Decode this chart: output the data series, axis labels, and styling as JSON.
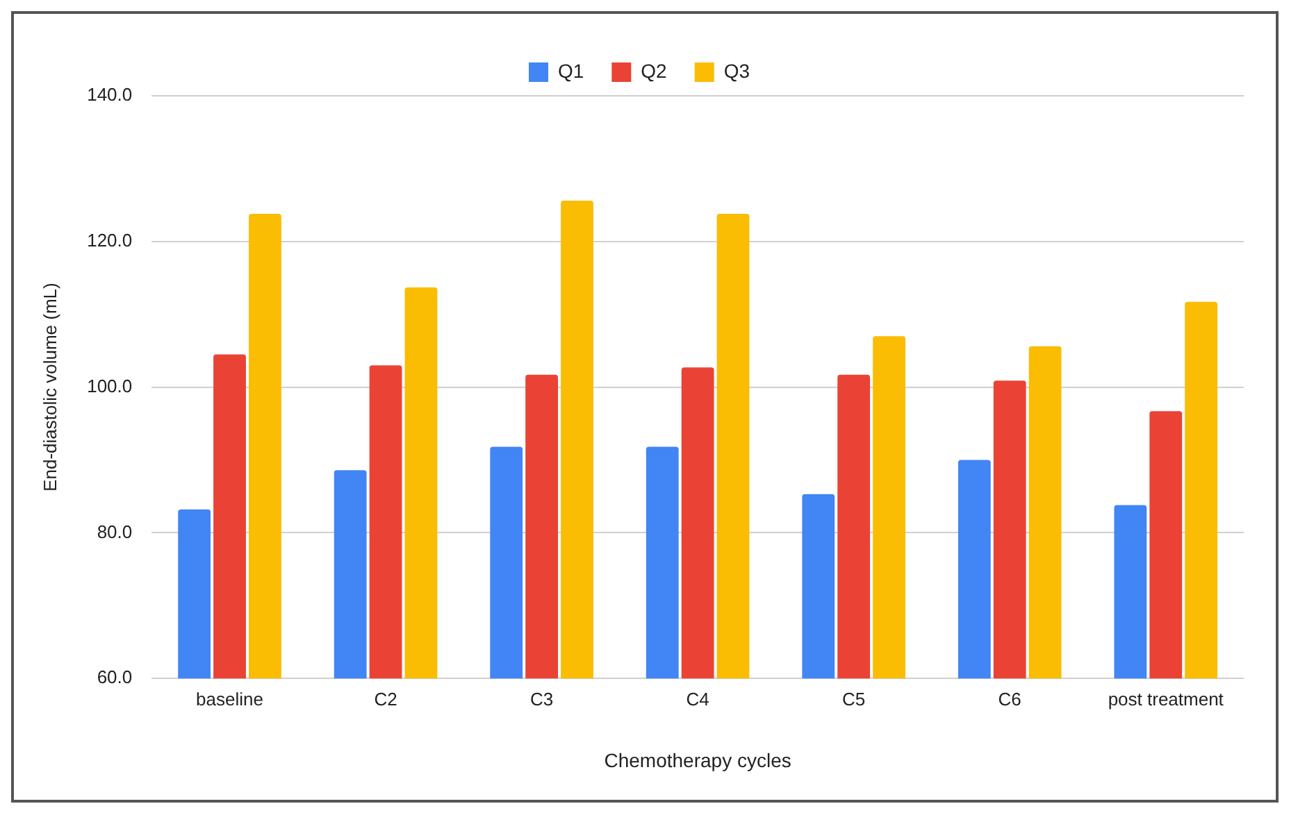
{
  "chart_data": {
    "type": "bar",
    "xlabel": "Chemotherapy cycles",
    "ylabel": "End-diastolic volume (mL)",
    "categories": [
      "baseline",
      "C2",
      "C3",
      "C4",
      "C5",
      "C6",
      "post treatment"
    ],
    "series": [
      {
        "name": "Q1",
        "color": "#4285f4",
        "values": [
          83.2,
          88.6,
          91.8,
          91.8,
          85.3,
          90.0,
          83.8
        ]
      },
      {
        "name": "Q2",
        "color": "#ea4335",
        "values": [
          104.5,
          103.0,
          101.7,
          102.7,
          101.7,
          100.9,
          96.7
        ]
      },
      {
        "name": "Q3",
        "color": "#fbbc04",
        "values": [
          123.8,
          113.7,
          125.6,
          123.8,
          107.0,
          105.6,
          111.7
        ]
      }
    ],
    "ylim": [
      60,
      140
    ],
    "yticks": [
      {
        "value": 60,
        "label": "60.0"
      },
      {
        "value": 80,
        "label": "80.0"
      },
      {
        "value": 100,
        "label": "100.0"
      },
      {
        "value": 120,
        "label": "120.0"
      },
      {
        "value": 140,
        "label": "140.0"
      }
    ],
    "grid": "y",
    "legend": "top"
  }
}
